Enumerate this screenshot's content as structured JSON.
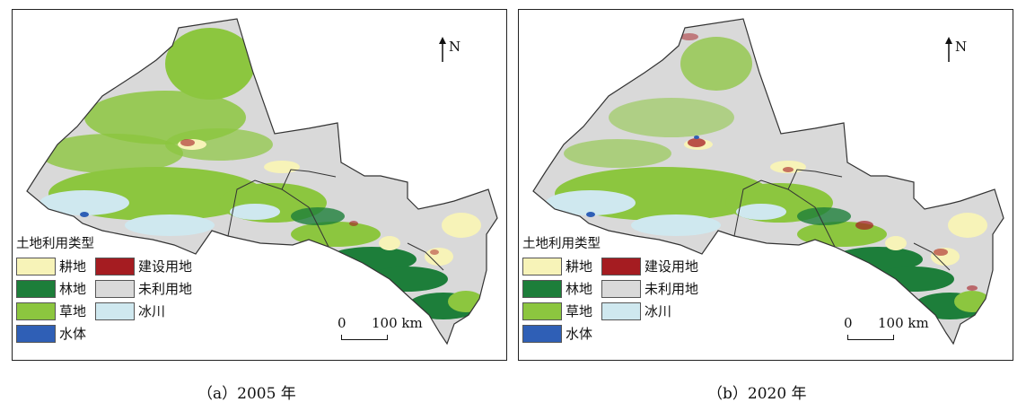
{
  "colors": {
    "cropland": "#f7f3b8",
    "forest": "#1d7e3a",
    "grassland": "#8cc63f",
    "water": "#2f5fb6",
    "construction": "#a51c21",
    "unused": "#d9d9d9",
    "glacier": "#cfe8ef"
  },
  "north_label": "N",
  "legend": {
    "title": "土地利用类型",
    "items": [
      {
        "key": "cropland",
        "label": "耕地"
      },
      {
        "key": "forest",
        "label": "林地"
      },
      {
        "key": "grassland",
        "label": "草地"
      },
      {
        "key": "water",
        "label": "水体"
      },
      {
        "key": "construction",
        "label": "建设用地"
      },
      {
        "key": "unused",
        "label": "未利用地"
      },
      {
        "key": "glacier",
        "label": "冰川"
      }
    ]
  },
  "scale": {
    "zero": "0",
    "distance": "100 km"
  },
  "panels": [
    {
      "caption": "（a）2005 年"
    },
    {
      "caption": "（b）2020 年"
    }
  ]
}
